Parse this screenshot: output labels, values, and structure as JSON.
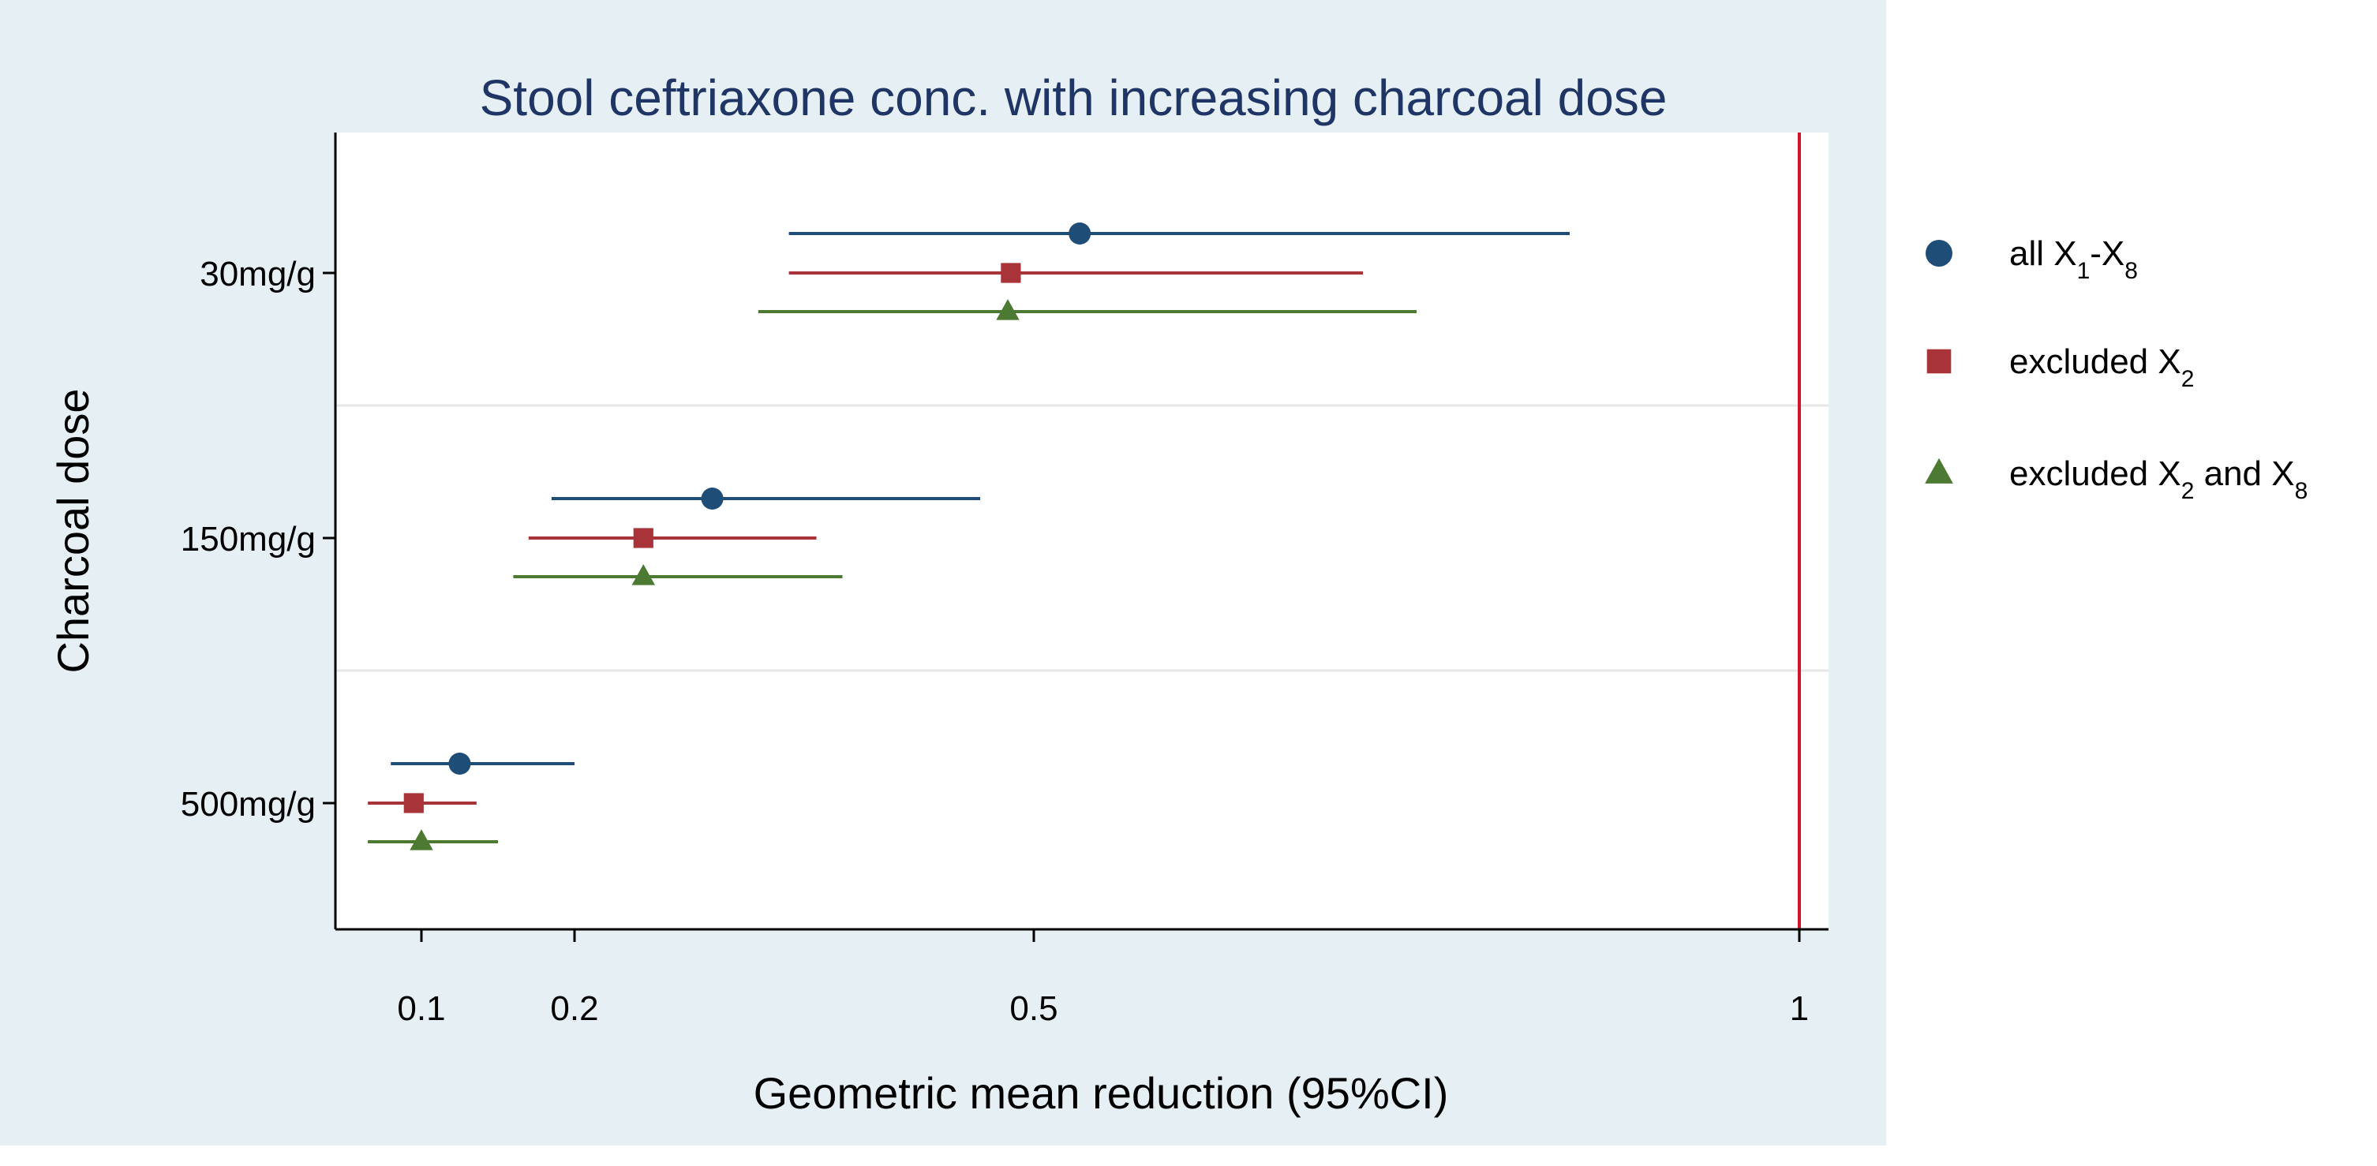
{
  "colors": {
    "outer_background": "#e6eff3",
    "plot_background": "#ffffff",
    "gridline": "#e7e7e7",
    "reference_line": "#d3162f",
    "series_1": "#1e4d78",
    "series_2": "#a8343a",
    "series_3": "#4c7a32"
  },
  "chart_data": {
    "type": "scatter",
    "subtype": "forest-plot",
    "title": "Stool ceftriaxone conc. with increasing charcoal dose",
    "xlabel": "Geometric mean reduction (95%CI)",
    "ylabel": "Charcoal dose",
    "x_scale": "linear",
    "xlim": [
      0.0,
      1.04
    ],
    "x_ticks": [
      0.1,
      0.2,
      0.5,
      1
    ],
    "x_tick_labels": [
      "0.1",
      "0.2",
      "0.5",
      "1"
    ],
    "reference_line_x": 1,
    "categories": [
      "30mg/g",
      "150mg/g",
      "500mg/g"
    ],
    "legend_position": "right",
    "grid": "horizontal separators between groups",
    "series": [
      {
        "name": "all X1-X8",
        "legend": {
          "text": "all X",
          "sub1": "1",
          "dash": "-X",
          "sub2": "8"
        },
        "marker": "circle",
        "color_key": "series_1",
        "points": [
          {
            "category": "30mg/g",
            "estimate": 0.53,
            "ci_low": 0.34,
            "ci_high": 0.85
          },
          {
            "category": "150mg/g",
            "estimate": 0.29,
            "ci_low": 0.185,
            "ci_high": 0.465
          },
          {
            "category": "500mg/g",
            "estimate": 0.125,
            "ci_low": 0.08,
            "ci_high": 0.2
          }
        ]
      },
      {
        "name": "excluded X2",
        "legend": {
          "text": "excluded X",
          "sub1": "2"
        },
        "marker": "square",
        "color_key": "series_2",
        "points": [
          {
            "category": "30mg/g",
            "estimate": 0.485,
            "ci_low": 0.34,
            "ci_high": 0.715
          },
          {
            "category": "150mg/g",
            "estimate": 0.245,
            "ci_low": 0.17,
            "ci_high": 0.358
          },
          {
            "category": "500mg/g",
            "estimate": 0.095,
            "ci_low": 0.065,
            "ci_high": 0.136
          }
        ]
      },
      {
        "name": "excluded X2 and X8",
        "legend": {
          "text": "excluded X",
          "sub1": "2",
          "mid": " and X",
          "sub2": "8"
        },
        "marker": "triangle",
        "color_key": "series_3",
        "points": [
          {
            "category": "30mg/g",
            "estimate": 0.483,
            "ci_low": 0.32,
            "ci_high": 0.75
          },
          {
            "category": "150mg/g",
            "estimate": 0.245,
            "ci_low": 0.16,
            "ci_high": 0.375
          },
          {
            "category": "500mg/g",
            "estimate": 0.1,
            "ci_low": 0.065,
            "ci_high": 0.15
          }
        ]
      }
    ]
  }
}
